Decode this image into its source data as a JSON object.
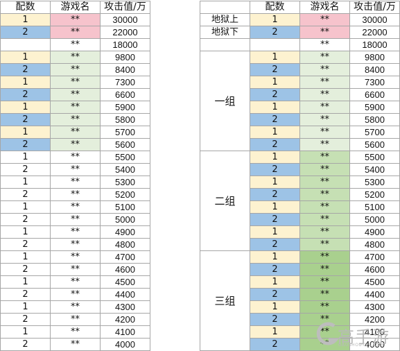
{
  "colors": {
    "yellow": "#fdf2d0",
    "blue": "#9dc3e6",
    "pink": "#f6c3cc",
    "green_light": "#e4efdc",
    "green_mid": "#c6e0b4",
    "green_dark": "#a9d08e",
    "grid": "#a6a6a6"
  },
  "headers": [
    "配数",
    "游戏名",
    "攻击值/万"
  ],
  "left_table": {
    "top_rows": [
      {
        "pair": "1",
        "name": "**",
        "value": "30000"
      },
      {
        "pair": "2",
        "name": "**",
        "value": "22000"
      },
      {
        "pair": "",
        "name": "**",
        "value": "18000"
      }
    ],
    "groups": [
      {
        "rows": [
          {
            "pair": "1",
            "name": "**",
            "value": "9800"
          },
          {
            "pair": "2",
            "name": "**",
            "value": "8400"
          },
          {
            "pair": "1",
            "name": "**",
            "value": "7300"
          },
          {
            "pair": "2",
            "name": "**",
            "value": "6600"
          },
          {
            "pair": "1",
            "name": "**",
            "value": "5900"
          },
          {
            "pair": "2",
            "name": "**",
            "value": "5800"
          },
          {
            "pair": "1",
            "name": "**",
            "value": "5700"
          },
          {
            "pair": "2",
            "name": "**",
            "value": "5600"
          }
        ]
      },
      {
        "rows": [
          {
            "pair": "1",
            "name": "**",
            "value": "5500"
          },
          {
            "pair": "2",
            "name": "**",
            "value": "5400"
          },
          {
            "pair": "1",
            "name": "**",
            "value": "5300"
          },
          {
            "pair": "2",
            "name": "**",
            "value": "5200"
          },
          {
            "pair": "1",
            "name": "**",
            "value": "5100"
          },
          {
            "pair": "2",
            "name": "**",
            "value": "5000"
          },
          {
            "pair": "1",
            "name": "**",
            "value": "4900"
          },
          {
            "pair": "2",
            "name": "**",
            "value": "4800"
          }
        ]
      },
      {
        "rows": [
          {
            "pair": "1",
            "name": "**",
            "value": "4700"
          },
          {
            "pair": "2",
            "name": "**",
            "value": "4600"
          },
          {
            "pair": "1",
            "name": "**",
            "value": "4500"
          },
          {
            "pair": "2",
            "name": "**",
            "value": "4400"
          },
          {
            "pair": "1",
            "name": "**",
            "value": "4300"
          },
          {
            "pair": "2",
            "name": "**",
            "value": "4200"
          },
          {
            "pair": "1",
            "name": "**",
            "value": "4100"
          },
          {
            "pair": "2",
            "name": "**",
            "value": "4000"
          }
        ]
      }
    ]
  },
  "right_table": {
    "top_labels": [
      "地狱上",
      "地狱下"
    ],
    "group_labels": [
      "一组",
      "二组",
      "三组"
    ]
  },
  "watermark": {
    "text": "高手游",
    "subtext": "GAOSHOUYOU.COM"
  }
}
